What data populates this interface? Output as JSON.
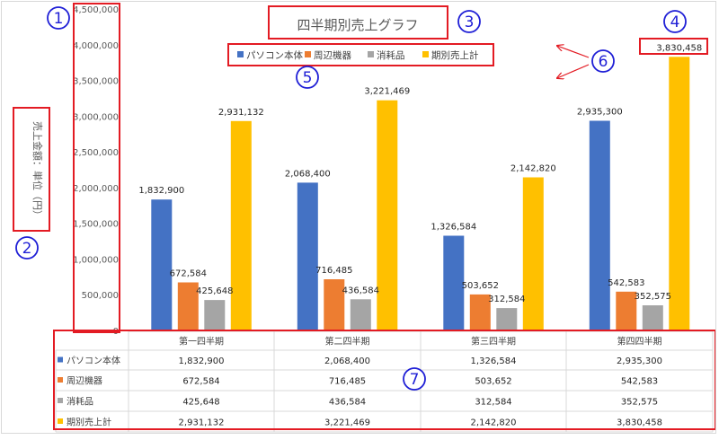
{
  "chart_data": {
    "type": "bar",
    "title": "四半期別売上グラフ",
    "ylabel": "売上金額：単位（円）",
    "ylim": [
      0,
      4500000
    ],
    "yticks": [
      "0",
      "500,000",
      "1,000,000",
      "1,500,000",
      "2,000,000",
      "2,500,000",
      "3,000,000",
      "3,500,000",
      "4,000,000",
      "4,500,000"
    ],
    "ytick_values": [
      0,
      500000,
      1000000,
      1500000,
      2000000,
      2500000,
      3000000,
      3500000,
      4000000,
      4500000
    ],
    "categories": [
      "第一四半期",
      "第二四半期",
      "第三四半期",
      "第四四半期"
    ],
    "series": [
      {
        "name": "パソコン本体",
        "color": "#4472C4",
        "values": [
          1832900,
          2068400,
          1326584,
          2935300
        ],
        "labels": [
          "1,832,900",
          "2,068,400",
          "1,326,584",
          "2,935,300"
        ]
      },
      {
        "name": "周辺機器",
        "color": "#ED7D31",
        "values": [
          672584,
          716485,
          503652,
          542583
        ],
        "labels": [
          "672,584",
          "716,485",
          "503,652",
          "542,583"
        ]
      },
      {
        "name": "消耗品",
        "color": "#A5A5A5",
        "values": [
          425648,
          436584,
          312584,
          352575
        ],
        "labels": [
          "425,648",
          "436,584",
          "312,584",
          "352,575"
        ]
      },
      {
        "name": "期別売上計",
        "color": "#FFC000",
        "values": [
          2931132,
          3221469,
          2142820,
          3830458
        ],
        "labels": [
          "2,931,132",
          "3,221,469",
          "2,142,820",
          "3,830,458"
        ]
      }
    ],
    "legend_position": "top",
    "gridlines": false,
    "data_table": true
  },
  "callouts": [
    "1",
    "2",
    "3",
    "4",
    "5",
    "6",
    "7"
  ],
  "colors": {
    "annotation_box": "#E31B23",
    "callout": "#1F1FD6",
    "axis": "#BFBFBF"
  }
}
